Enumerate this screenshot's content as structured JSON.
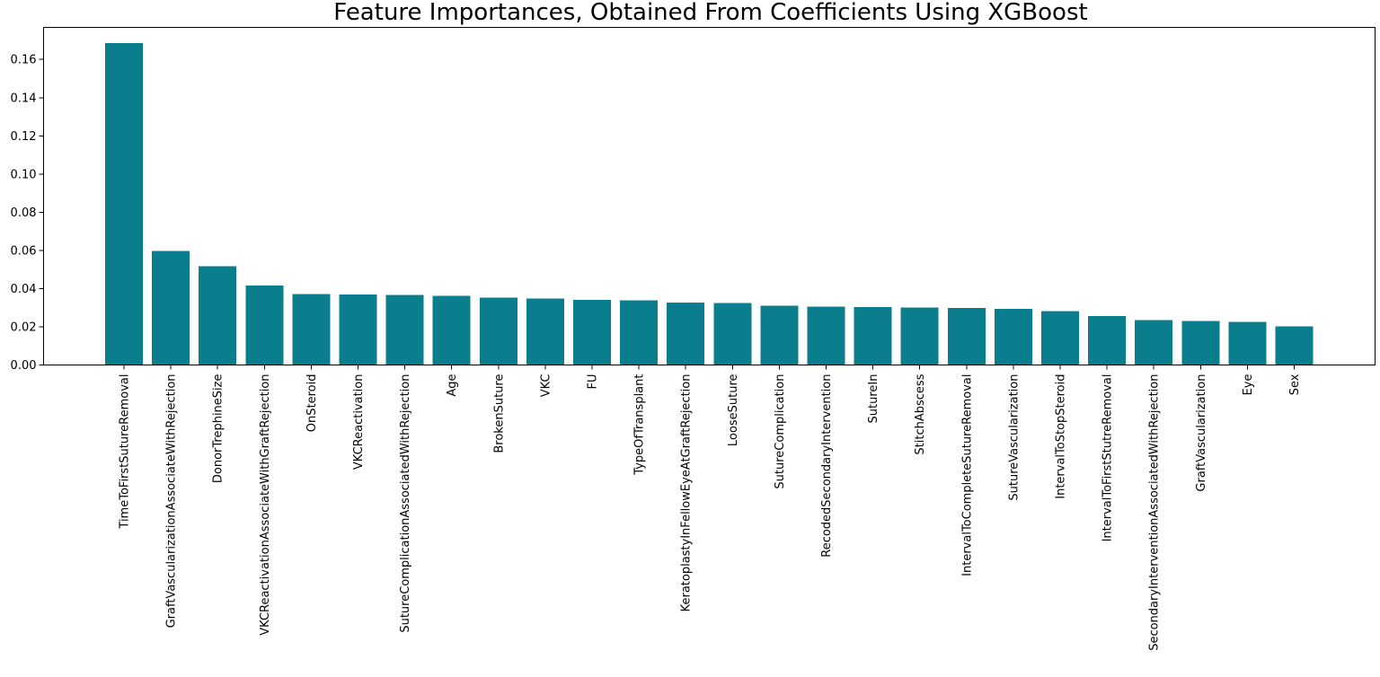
{
  "chart_data": {
    "type": "bar",
    "title": "Feature Importances, Obtained From Coefficients Using XGBoost",
    "xlabel": "",
    "ylabel": "",
    "ylim": [
      0,
      0.1768
    ],
    "yticks": [
      0.0,
      0.02,
      0.04,
      0.06,
      0.08,
      0.1,
      0.12,
      0.14,
      0.16
    ],
    "ytick_labels": [
      "0.00",
      "0.02",
      "0.04",
      "0.06",
      "0.08",
      "0.10",
      "0.12",
      "0.14",
      "0.16"
    ],
    "bar_color": "#0a7e8c",
    "grid": false,
    "categories": [
      "TimeToFirstSutureRemoval",
      "GraftVascularizationAssociateWithRejection",
      "DonorTrephineSize",
      "VKCReactivationAssociateWithGraftRejection",
      "OnSteroid",
      "VKCReactivation",
      "SutureComplicationAssociatedWithRejection",
      "Age",
      "BrokenSuture",
      "VKC",
      "FU",
      "TypeOfTransplant",
      "KeratoplastyInFellowEyeAtGraftRejection",
      "LooseSuture",
      "SutureComplication",
      "RecodedSecondaryIntervention",
      "SutureIn",
      "StitchAbscess",
      "IntervalToCompleteSutureRemoval",
      "SutureVascularization",
      "IntervalToStopSteroid",
      "IntervalToFirstStutreRemoval",
      "SecondaryInterventionAssociatedWithRejection",
      "GraftVascularization",
      "Eye",
      "Sex"
    ],
    "values": [
      0.1685,
      0.0598,
      0.0518,
      0.0415,
      0.0372,
      0.0368,
      0.0366,
      0.0362,
      0.0353,
      0.0349,
      0.0341,
      0.0339,
      0.0326,
      0.0325,
      0.0311,
      0.0305,
      0.0304,
      0.0301,
      0.0299,
      0.0295,
      0.0283,
      0.0256,
      0.0235,
      0.023,
      0.0226,
      0.0202
    ]
  }
}
